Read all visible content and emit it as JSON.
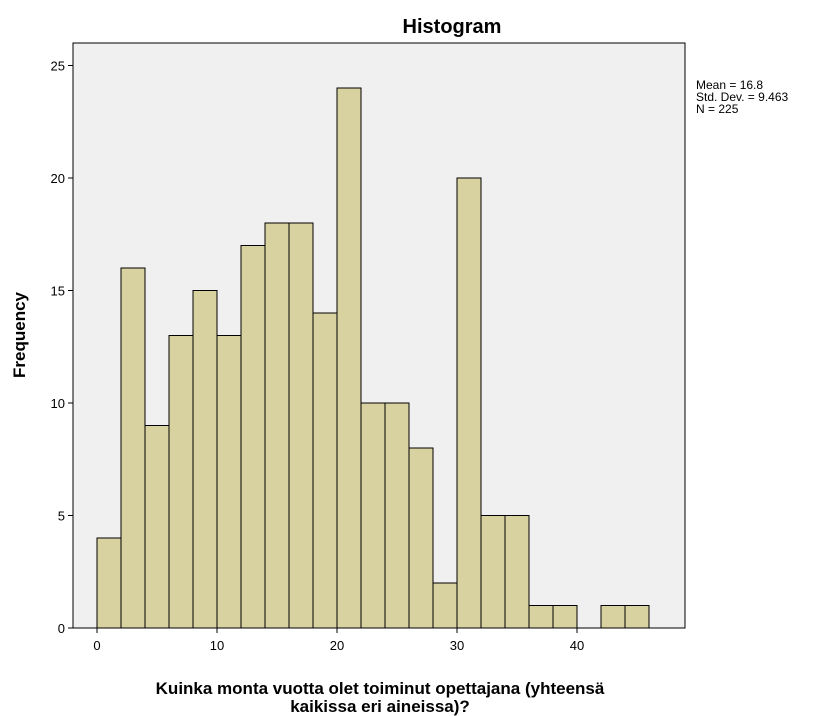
{
  "chart_data": {
    "type": "bar",
    "title": "Histogram",
    "xlabel_lines": [
      "Kuinka monta vuotta olet toiminut opettajana (yhteensä",
      "kaikissa eri aineissa)?"
    ],
    "ylabel": "Frequency",
    "bin_width": 2,
    "bins_start": [
      0,
      2,
      4,
      6,
      8,
      10,
      12,
      14,
      16,
      18,
      20,
      22,
      24,
      26,
      28,
      30,
      32,
      34,
      36,
      38,
      40,
      42,
      44
    ],
    "values": [
      4,
      16,
      9,
      13,
      15,
      13,
      17,
      18,
      18,
      14,
      24,
      10,
      10,
      8,
      2,
      20,
      5,
      5,
      1,
      1,
      0,
      1,
      1
    ],
    "xlim": [
      -2,
      49
    ],
    "ylim": [
      0,
      26
    ],
    "xticks": [
      0,
      10,
      20,
      30,
      40
    ],
    "yticks": [
      0,
      5,
      10,
      15,
      20,
      25
    ],
    "bar_color": "#d8d2a0",
    "plot_background": "#f0f0f0",
    "grid": false,
    "stats": {
      "mean": "Mean = 16.8",
      "std": "Std. Dev. = 9.463",
      "n": "N = 225"
    }
  }
}
